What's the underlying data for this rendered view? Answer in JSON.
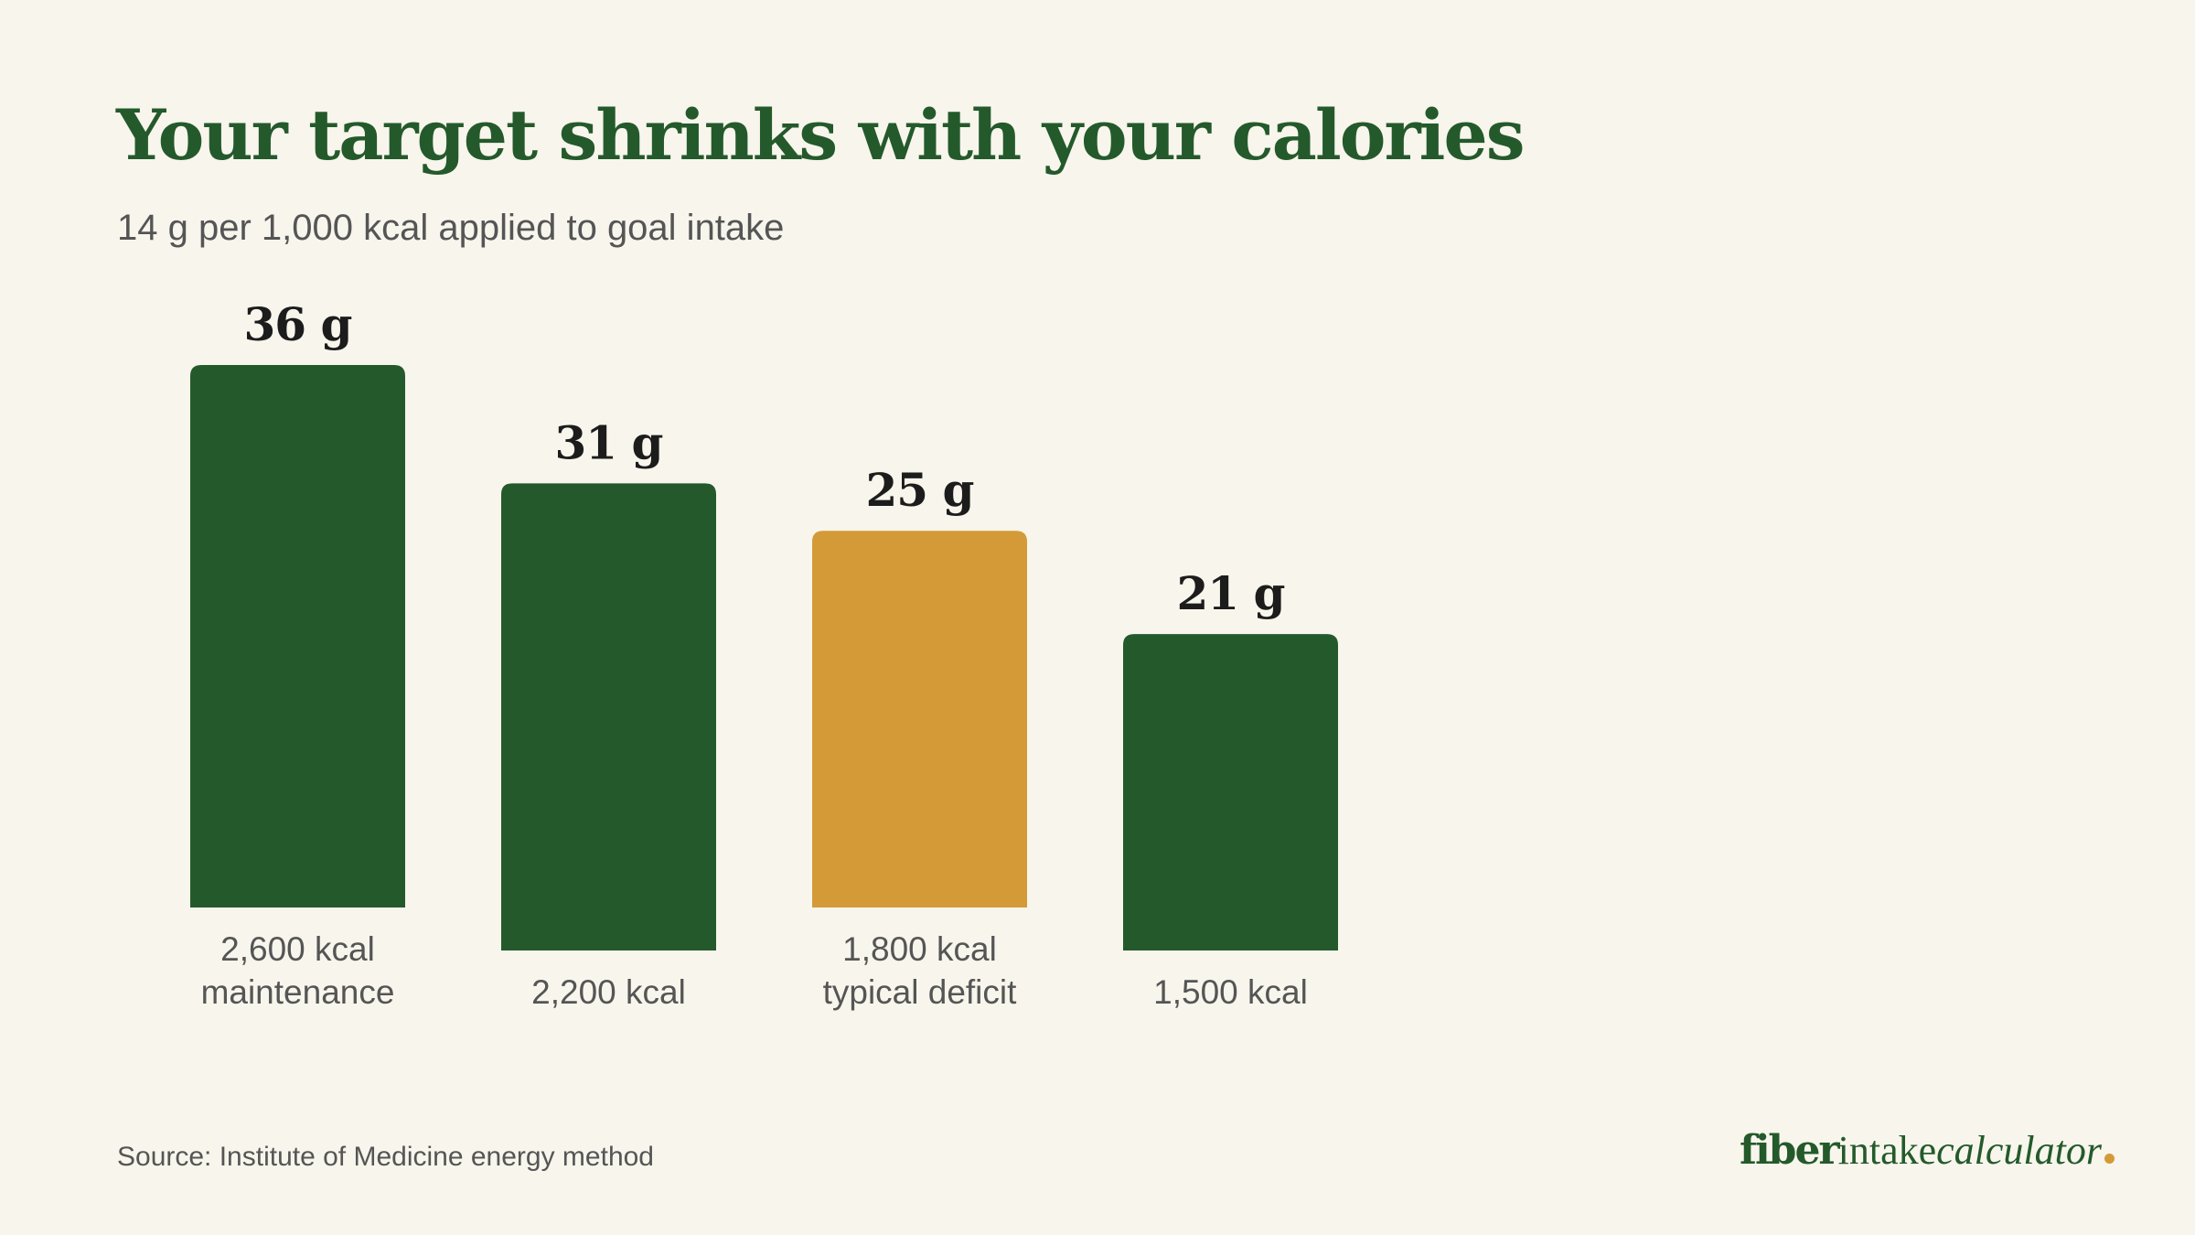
{
  "title": "Your target shrinks with your calories",
  "subtitle": "14 g per 1,000 kcal applied to goal intake",
  "source": "Source: Institute of Medicine energy method",
  "logo": {
    "part1": "fiber",
    "part2": "intake",
    "part3": "calculator",
    "dot_color": "#d49a38"
  },
  "colors": {
    "primary": "#245a2b",
    "highlight": "#d49a38",
    "label_text": "#1c1c1c",
    "axis_text": "#555555",
    "background": "#f8f5ec"
  },
  "chart_data": {
    "type": "bar",
    "title": "Your target shrinks with your calories",
    "subtitle": "14 g per 1,000 kcal applied to goal intake",
    "categories": [
      [
        "2,600 kcal",
        "maintenance"
      ],
      [
        "2,200 kcal"
      ],
      [
        "1,800 kcal",
        "typical deficit"
      ],
      [
        "1,500 kcal"
      ]
    ],
    "values": [
      36,
      31,
      25,
      21
    ],
    "value_labels": [
      "36 g",
      "31 g",
      "25 g",
      "21 g"
    ],
    "highlight_index": 2,
    "unit": "g",
    "ylim": [
      0,
      36
    ],
    "grid": false,
    "legend": "none"
  }
}
